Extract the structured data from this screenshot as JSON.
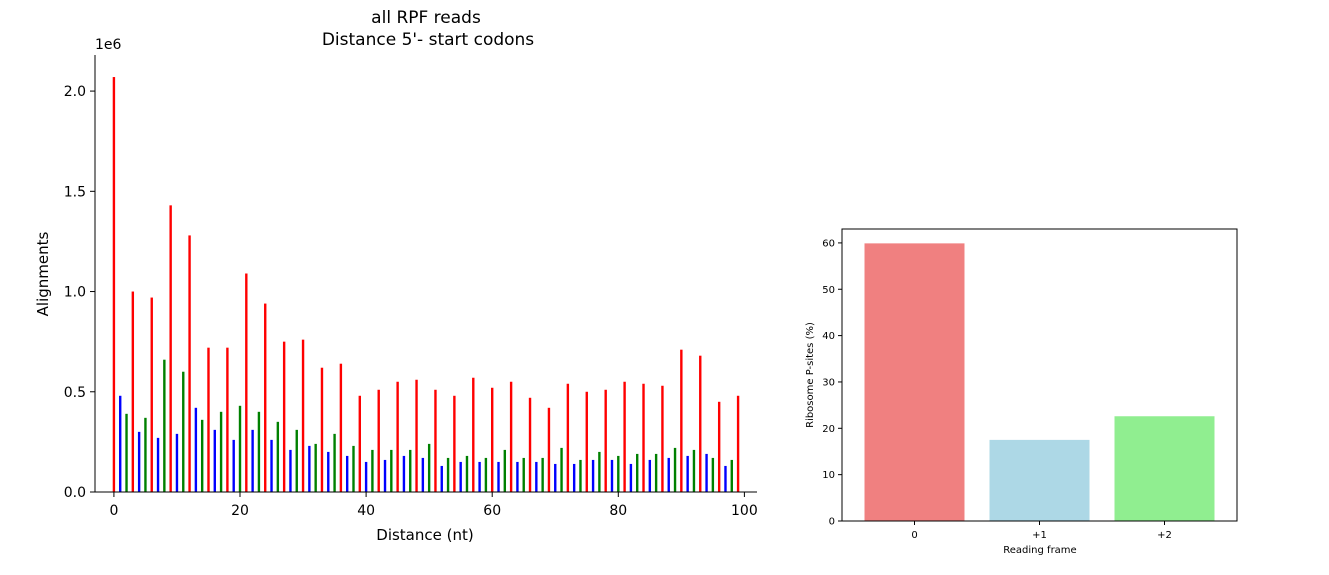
{
  "chart_data": [
    {
      "type": "bar",
      "title": "all RPF reads",
      "subtitle": "Distance 5'- start codons",
      "xlabel": "Distance (nt)",
      "ylabel": "Alignments",
      "y_multiplier_label": "1e6",
      "xlim": [
        -3,
        102
      ],
      "ylim": [
        0,
        2.18
      ],
      "xticks": [
        "0",
        "20",
        "40",
        "60",
        "80",
        "100"
      ],
      "xtick_values": [
        0,
        20,
        40,
        60,
        80,
        100
      ],
      "yticks": [
        "0.0",
        "0.5",
        "1.0",
        "1.5",
        "2.0"
      ],
      "ytick_values": [
        0,
        0.5,
        1.0,
        1.5,
        2.0
      ],
      "grid": false,
      "frame_colors": {
        "0": "#ff0000",
        "1": "#0000ff",
        "2": "#008000"
      },
      "x": [
        0,
        1,
        2,
        3,
        4,
        5,
        6,
        7,
        8,
        9,
        10,
        11,
        12,
        13,
        14,
        15,
        16,
        17,
        18,
        19,
        20,
        21,
        22,
        23,
        24,
        25,
        26,
        27,
        28,
        29,
        30,
        31,
        32,
        33,
        34,
        35,
        36,
        37,
        38,
        39,
        40,
        41,
        42,
        43,
        44,
        45,
        46,
        47,
        48,
        49,
        50,
        51,
        52,
        53,
        54,
        55,
        56,
        57,
        58,
        59,
        60,
        61,
        62,
        63,
        64,
        65,
        66,
        67,
        68,
        69,
        70,
        71,
        72,
        73,
        74,
        75,
        76,
        77,
        78,
        79,
        80,
        81,
        82,
        83,
        84,
        85,
        86,
        87,
        88,
        89,
        90,
        91,
        92,
        93,
        94,
        95,
        96,
        97,
        98,
        99
      ],
      "values": [
        2.07,
        0.48,
        0.39,
        1.0,
        0.3,
        0.37,
        0.97,
        0.27,
        0.66,
        1.43,
        0.29,
        0.6,
        1.28,
        0.42,
        0.36,
        0.72,
        0.31,
        0.4,
        0.72,
        0.26,
        0.43,
        1.09,
        0.31,
        0.4,
        0.94,
        0.26,
        0.35,
        0.75,
        0.21,
        0.31,
        0.76,
        0.23,
        0.24,
        0.62,
        0.2,
        0.29,
        0.64,
        0.18,
        0.23,
        0.48,
        0.15,
        0.21,
        0.51,
        0.16,
        0.21,
        0.55,
        0.18,
        0.21,
        0.56,
        0.17,
        0.24,
        0.51,
        0.13,
        0.17,
        0.48,
        0.15,
        0.18,
        0.57,
        0.15,
        0.17,
        0.52,
        0.15,
        0.21,
        0.55,
        0.15,
        0.17,
        0.47,
        0.15,
        0.17,
        0.42,
        0.14,
        0.22,
        0.54,
        0.14,
        0.16,
        0.5,
        0.16,
        0.2,
        0.51,
        0.16,
        0.18,
        0.55,
        0.14,
        0.19,
        0.54,
        0.16,
        0.19,
        0.53,
        0.17,
        0.22,
        0.71,
        0.18,
        0.21,
        0.68,
        0.19,
        0.17,
        0.45,
        0.13,
        0.16,
        0.48
      ]
    },
    {
      "type": "bar",
      "title": "",
      "xlabel": "Reading frame",
      "ylabel": "Ribosome P-sites (%)",
      "categories": [
        "0",
        "+1",
        "+2"
      ],
      "values": [
        59.9,
        17.5,
        22.6
      ],
      "colors": [
        "#f08080",
        "#add8e6",
        "#90ee90"
      ],
      "ylim": [
        0,
        63
      ],
      "yticks": [
        "0",
        "10",
        "20",
        "30",
        "40",
        "50",
        "60"
      ],
      "ytick_values": [
        0,
        10,
        20,
        30,
        40,
        50,
        60
      ],
      "grid": false
    }
  ]
}
